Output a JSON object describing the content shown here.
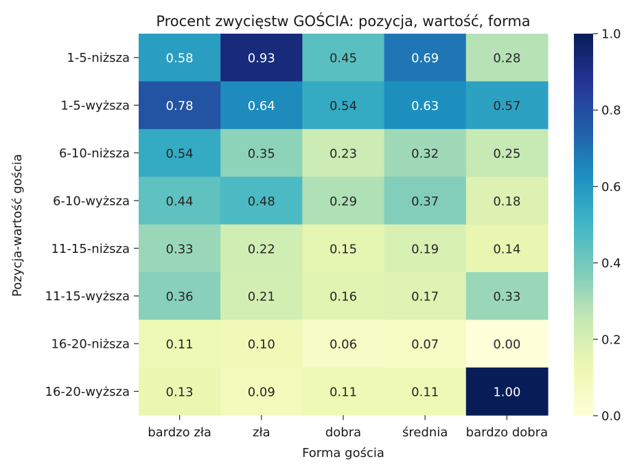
{
  "chart_data": {
    "type": "heatmap",
    "title": "Procent zwycięstw GOŚCIA: pozycja, wartość, forma",
    "xlabel": "Forma gościa",
    "ylabel": "Pozycja-wartość gościa",
    "x_categories": [
      "bardzo zła",
      "zła",
      "dobra",
      "średnia",
      "bardzo dobra"
    ],
    "y_categories": [
      "1-5-niższa",
      "1-5-wyższa",
      "6-10-niższa",
      "6-10-wyższa",
      "11-15-niższa",
      "11-15-wyższa",
      "16-20-niższa",
      "16-20-wyższa"
    ],
    "values": [
      [
        0.58,
        0.93,
        0.45,
        0.69,
        0.28
      ],
      [
        0.78,
        0.64,
        0.54,
        0.63,
        0.57
      ],
      [
        0.54,
        0.35,
        0.23,
        0.32,
        0.25
      ],
      [
        0.44,
        0.48,
        0.29,
        0.37,
        0.18
      ],
      [
        0.33,
        0.22,
        0.15,
        0.19,
        0.14
      ],
      [
        0.36,
        0.21,
        0.16,
        0.17,
        0.33
      ],
      [
        0.11,
        0.1,
        0.06,
        0.07,
        0.0
      ],
      [
        0.13,
        0.09,
        0.11,
        0.11,
        1.0
      ]
    ],
    "value_format_decimals": 2,
    "colormap": "YlGnBu",
    "vmin": 0.0,
    "vmax": 1.0,
    "colorbar_ticks": [
      "0.0",
      "0.2",
      "0.4",
      "0.6",
      "0.8",
      "1.0"
    ],
    "colorbar_tick_values": [
      0.0,
      0.2,
      0.4,
      0.6,
      0.8,
      1.0
    ],
    "colormap_stops": [
      "#ffffd9",
      "#edf8b1",
      "#c7e9b4",
      "#7fcdbb",
      "#41b6c4",
      "#1d91c0",
      "#225ea8",
      "#253494",
      "#081d58"
    ]
  }
}
